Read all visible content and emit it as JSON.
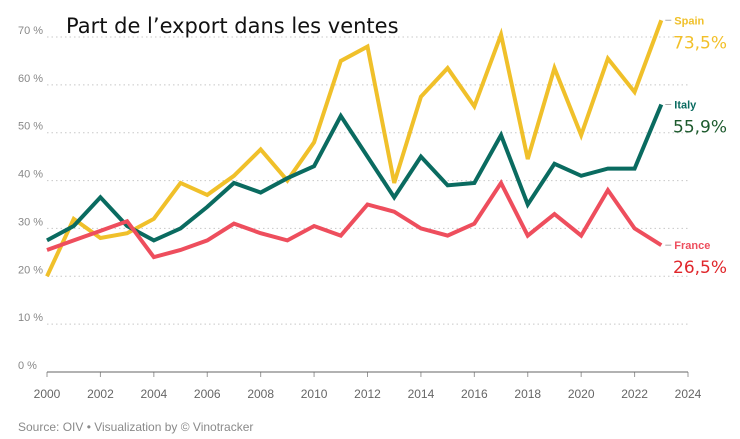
{
  "chart_data": {
    "type": "line",
    "title": "Part de l’export dans les ventes",
    "source": "Source: OIV • Visualization by © Vinotracker",
    "x_ticks": [
      "2000",
      "2002",
      "2004",
      "2006",
      "2008",
      "2010",
      "2012",
      "2014",
      "2016",
      "2018",
      "2020",
      "2022",
      "2024"
    ],
    "y_ticks": [
      "0 %",
      "10 %",
      "20 %",
      "30 %",
      "40 %",
      "50 %",
      "60 %",
      "70 %"
    ],
    "xlim": [
      2000,
      2024
    ],
    "ylim": [
      0,
      70
    ],
    "x": [
      2000,
      2001,
      2002,
      2003,
      2004,
      2005,
      2006,
      2007,
      2008,
      2009,
      2010,
      2011,
      2012,
      2013,
      2014,
      2015,
      2016,
      2017,
      2018,
      2019,
      2020,
      2021,
      2022,
      2023
    ],
    "series": [
      {
        "name": "Spain",
        "end_value_label": "73,5%",
        "color": "#f0c02a",
        "label_color": "#f2c029",
        "values": [
          20,
          32,
          28,
          29,
          32,
          39.5,
          37,
          41,
          46.5,
          40,
          48,
          65,
          68,
          39.5,
          57.5,
          63.5,
          55.5,
          70.5,
          44.5,
          63.5,
          49.5,
          65.5,
          58.5,
          73.5
        ]
      },
      {
        "name": "Italy",
        "end_value_label": "55,9%",
        "color": "#0a6b60",
        "label_color": "#1d5a2d",
        "values": [
          27.5,
          30.5,
          36.5,
          30.5,
          27.5,
          30,
          34.5,
          39.5,
          37.5,
          40.5,
          43,
          53.5,
          45,
          36.5,
          45,
          39,
          39.5,
          49.5,
          35,
          43.5,
          41,
          42.5,
          42.5,
          55.9
        ]
      },
      {
        "name": "France",
        "end_value_label": "26,5%",
        "color": "#ee4e5d",
        "label_color": "#e0262b",
        "values": [
          25.5,
          27.5,
          29.5,
          31.5,
          24,
          25.5,
          27.5,
          31,
          29,
          27.5,
          30.5,
          28.5,
          35,
          33.5,
          30,
          28.5,
          31,
          39.5,
          28.5,
          33,
          28.5,
          38,
          30,
          26.5
        ]
      }
    ],
    "grid": true,
    "grid_style": "dotted horizontal",
    "legend": "end-of-line labels (right)"
  }
}
